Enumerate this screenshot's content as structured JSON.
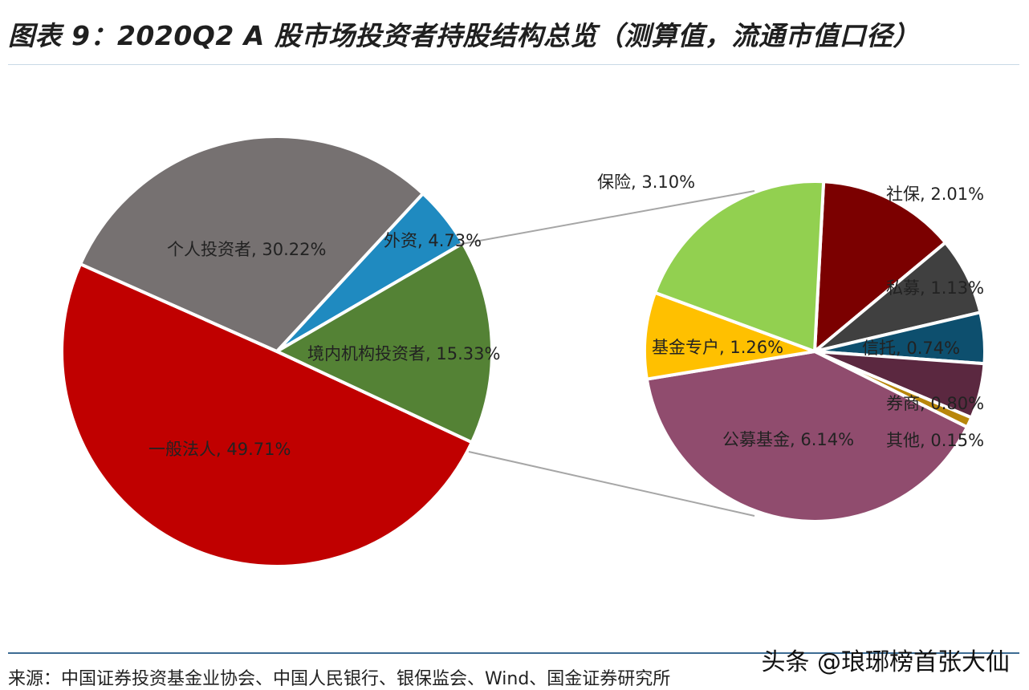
{
  "title": "图表 9：2020Q2 A 股市场投资者持股结构总览（测算值，流通市值口径）",
  "source": "来源：中国证券投资基金业协会、中国人民银行、银保监会、Wind、国金证券研究所",
  "watermark": "头条 @琅琊榜首张大仙",
  "chart_data": [
    {
      "type": "pie",
      "slices": [
        {
          "label": "一般法人",
          "value": 49.71,
          "display": "一般法人, 49.71%",
          "color": "#c00000"
        },
        {
          "label": "个人投资者",
          "value": 30.22,
          "display": "个人投资者, 30.22%",
          "color": "#767171"
        },
        {
          "label": "外资",
          "value": 4.73,
          "display": "外资, 4.73%",
          "color": "#1f8ac0"
        },
        {
          "label": "境内机构投资者",
          "value": 15.33,
          "display": "境内机构投资者, 15.33%",
          "color": "#548235"
        }
      ]
    },
    {
      "type": "pie",
      "slices": [
        {
          "label": "社保",
          "value": 2.01,
          "display": "社保, 2.01%",
          "color": "#7b0000"
        },
        {
          "label": "私募",
          "value": 1.13,
          "display": "私募, 1.13%",
          "color": "#404040"
        },
        {
          "label": "信托",
          "value": 0.74,
          "display": "信托, 0.74%",
          "color": "#0d4f6e"
        },
        {
          "label": "券商",
          "value": 0.8,
          "display": "券商, 0.80%",
          "color": "#5b2840"
        },
        {
          "label": "其他",
          "value": 0.15,
          "display": "其他, 0.15%",
          "color": "#b8860b"
        },
        {
          "label": "公募基金",
          "value": 6.14,
          "display": "公募基金, 6.14%",
          "color": "#904c6e"
        },
        {
          "label": "基金专户",
          "value": 1.26,
          "display": "基金专户, 1.26%",
          "color": "#ffc000"
        },
        {
          "label": "保险",
          "value": 3.1,
          "display": "保险, 3.10%",
          "color": "#92d050"
        }
      ]
    }
  ]
}
